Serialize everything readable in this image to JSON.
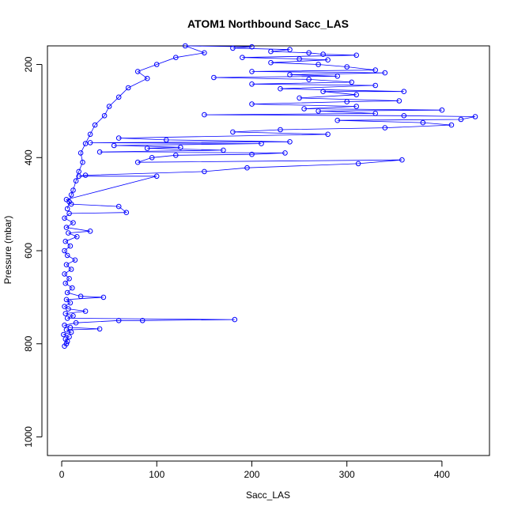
{
  "chart_data": {
    "type": "scatter",
    "title": "ATOM1 Northbound Sacc_LAS",
    "xlabel": "Sacc_LAS",
    "ylabel": "Pressure (mbar)",
    "xlim": [
      -15,
      450
    ],
    "ylim": [
      1040,
      160
    ],
    "y_reversed": true,
    "x_ticks": [
      0,
      100,
      200,
      300,
      400
    ],
    "y_ticks": [
      200,
      400,
      600,
      800,
      1000
    ],
    "grid": false,
    "series": [
      {
        "color": "#0000ff",
        "style": "points-and-lines",
        "points": [
          [
            3,
            805
          ],
          [
            5,
            800
          ],
          [
            6,
            795
          ],
          [
            4,
            790
          ],
          [
            8,
            785
          ],
          [
            2,
            780
          ],
          [
            10,
            775
          ],
          [
            5,
            770
          ],
          [
            40,
            768
          ],
          [
            9,
            765
          ],
          [
            3,
            760
          ],
          [
            15,
            755
          ],
          [
            60,
            750
          ],
          [
            85,
            750
          ],
          [
            182,
            748
          ],
          [
            6,
            745
          ],
          [
            12,
            740
          ],
          [
            4,
            735
          ],
          [
            25,
            730
          ],
          [
            7,
            725
          ],
          [
            3,
            720
          ],
          [
            9,
            712
          ],
          [
            5,
            705
          ],
          [
            44,
            700
          ],
          [
            20,
            698
          ],
          [
            6,
            690
          ],
          [
            11,
            680
          ],
          [
            4,
            670
          ],
          [
            8,
            660
          ],
          [
            3,
            650
          ],
          [
            10,
            640
          ],
          [
            5,
            630
          ],
          [
            14,
            620
          ],
          [
            6,
            610
          ],
          [
            3,
            600
          ],
          [
            9,
            590
          ],
          [
            4,
            580
          ],
          [
            16,
            570
          ],
          [
            7,
            562
          ],
          [
            30,
            558
          ],
          [
            5,
            550
          ],
          [
            12,
            540
          ],
          [
            3,
            530
          ],
          [
            8,
            520
          ],
          [
            68,
            518
          ],
          [
            60,
            505
          ],
          [
            10,
            500
          ],
          [
            5,
            490
          ],
          [
            100,
            440
          ],
          [
            18,
            440
          ],
          [
            25,
            438
          ],
          [
            150,
            430
          ],
          [
            195,
            422
          ],
          [
            312,
            413
          ],
          [
            358,
            405
          ],
          [
            80,
            410
          ],
          [
            95,
            400
          ],
          [
            120,
            395
          ],
          [
            200,
            393
          ],
          [
            235,
            390
          ],
          [
            40,
            388
          ],
          [
            170,
            384
          ],
          [
            90,
            380
          ],
          [
            125,
            378
          ],
          [
            55,
            374
          ],
          [
            210,
            370
          ],
          [
            30,
            368
          ],
          [
            240,
            366
          ],
          [
            110,
            362
          ],
          [
            60,
            358
          ],
          [
            280,
            350
          ],
          [
            180,
            345
          ],
          [
            230,
            340
          ],
          [
            340,
            336
          ],
          [
            410,
            330
          ],
          [
            380,
            325
          ],
          [
            290,
            320
          ],
          [
            420,
            318
          ],
          [
            435,
            312
          ],
          [
            360,
            310
          ],
          [
            150,
            308
          ],
          [
            330,
            305
          ],
          [
            270,
            300
          ],
          [
            400,
            298
          ],
          [
            255,
            295
          ],
          [
            310,
            290
          ],
          [
            200,
            285
          ],
          [
            300,
            280
          ],
          [
            355,
            278
          ],
          [
            250,
            272
          ],
          [
            310,
            265
          ],
          [
            275,
            258
          ],
          [
            360,
            258
          ],
          [
            230,
            252
          ],
          [
            330,
            245
          ],
          [
            200,
            242
          ],
          [
            305,
            238
          ],
          [
            260,
            232
          ],
          [
            160,
            228
          ],
          [
            290,
            225
          ],
          [
            240,
            222
          ],
          [
            340,
            218
          ],
          [
            200,
            215
          ],
          [
            330,
            212
          ],
          [
            300,
            205
          ],
          [
            270,
            200
          ],
          [
            220,
            196
          ],
          [
            280,
            190
          ],
          [
            250,
            188
          ],
          [
            190,
            185
          ],
          [
            310,
            180
          ],
          [
            275,
            178
          ],
          [
            260,
            175
          ],
          [
            220,
            172
          ],
          [
            240,
            168
          ],
          [
            180,
            165
          ],
          [
            200,
            162
          ],
          [
            130,
            160
          ],
          [
            150,
            175
          ],
          [
            120,
            185
          ],
          [
            100,
            200
          ],
          [
            80,
            215
          ],
          [
            90,
            230
          ],
          [
            70,
            250
          ],
          [
            60,
            270
          ],
          [
            50,
            290
          ],
          [
            45,
            310
          ],
          [
            35,
            330
          ],
          [
            30,
            350
          ],
          [
            25,
            370
          ],
          [
            20,
            390
          ],
          [
            22,
            410
          ],
          [
            18,
            430
          ],
          [
            15,
            450
          ],
          [
            12,
            470
          ],
          [
            10,
            480
          ],
          [
            8,
            495
          ],
          [
            6,
            510
          ]
        ]
      }
    ]
  }
}
